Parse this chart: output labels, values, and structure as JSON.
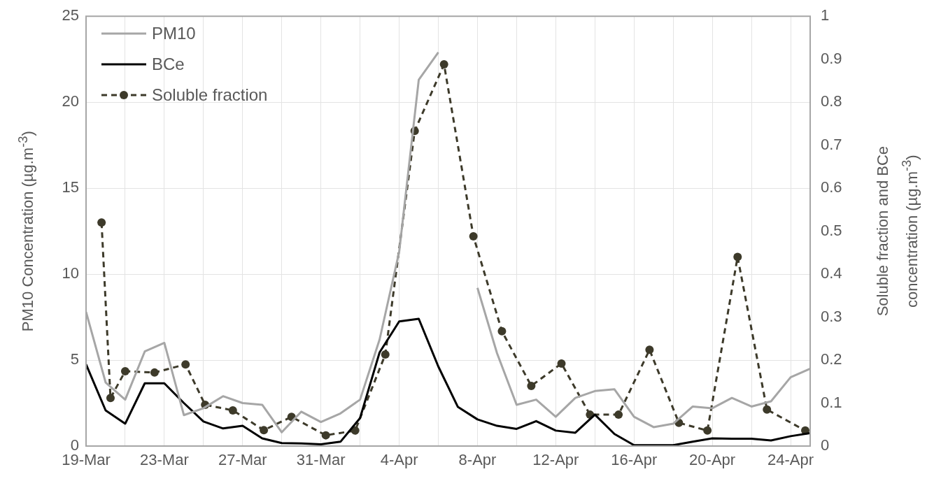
{
  "chart_data": {
    "type": "line",
    "ylabel": "PM10 Concentration (µg.m$^{-3}$)",
    "y2label": "Soluble fraction and BCe concentration (µg.m$^{-3}$)",
    "x": [
      "--03-19",
      "--03-20",
      "--03-21",
      "--03-22",
      "--03-23",
      "--03-24",
      "--03-25",
      "--03-26",
      "--03-27",
      "--03-28",
      "--03-29",
      "--03-30",
      "--03-31",
      "--04-01",
      "--04-02",
      "--04-03",
      "--04-04",
      "--04-05",
      "--04-06",
      "--04-07",
      "--04-08",
      "--04-09",
      "--04-10",
      "--04-11",
      "--04-12",
      "--04-13",
      "--04-14",
      "--04-15",
      "--04-16",
      "--04-17",
      "--04-18",
      "--04-19",
      "--04-20",
      "--04-21",
      "--04-22",
      "--04-23",
      "--04-24",
      "--04-25"
    ],
    "xlim": [
      "--03-19",
      "--04-25"
    ],
    "xticks": [
      {
        "value": "--03-19",
        "label": "19-Mar"
      },
      {
        "value": "--03-21",
        "label": null
      },
      {
        "value": "--03-23",
        "label": "23-Mar"
      },
      {
        "value": "--03-25",
        "label": null
      },
      {
        "value": "--03-27",
        "label": "27-Mar"
      },
      {
        "value": "--03-29",
        "label": null
      },
      {
        "value": "--03-31",
        "label": "31-Mar"
      },
      {
        "value": "--04-02",
        "label": null
      },
      {
        "value": "--04-04",
        "label": "4-Apr"
      },
      {
        "value": "--04-06",
        "label": null
      },
      {
        "value": "--04-08",
        "label": "8-Apr"
      },
      {
        "value": "--04-10",
        "label": null
      },
      {
        "value": "--04-12",
        "label": "12-Apr"
      },
      {
        "value": "--04-14",
        "label": null
      },
      {
        "value": "--04-16",
        "label": "16-Apr"
      },
      {
        "value": "--04-18",
        "label": null
      },
      {
        "value": "--04-20",
        "label": "20-Apr"
      },
      {
        "value": "--04-22",
        "label": null
      },
      {
        "value": "--04-24",
        "label": "24-Apr"
      }
    ],
    "ylim": [
      0,
      25
    ],
    "yticks": [
      0,
      5,
      10,
      15,
      20,
      25
    ],
    "y2lim": [
      0,
      1
    ],
    "y2ticks": [
      0,
      0.1,
      0.2,
      0.3,
      0.4,
      0.5,
      0.6,
      0.7,
      0.8,
      0.9,
      1
    ],
    "grid": true,
    "legend": "top left",
    "series": [
      {
        "name": "PM10",
        "color": "#a6a6a6",
        "values": [
          7.8,
          3.7,
          2.7,
          5.5,
          6.0,
          1.8,
          2.2,
          2.9,
          2.5,
          2.4,
          0.8,
          2.0,
          1.4,
          1.9,
          2.7,
          6.2,
          11.3,
          21.3,
          22.9,
          null,
          9.2,
          5.4,
          2.4,
          2.7,
          1.7,
          2.8,
          3.2,
          3.3,
          1.7,
          1.1,
          1.3,
          2.3,
          2.2,
          2.8,
          2.3,
          2.6,
          4.0,
          4.5
        ]
      },
      {
        "name": "BCe",
        "color": "#000000",
        "axis": "y2",
        "values": [
          0.19,
          0.083,
          0.052,
          0.146,
          0.146,
          0.1,
          0.057,
          0.041,
          0.047,
          0.018,
          0.007,
          0.006,
          0.004,
          0.01,
          0.065,
          0.218,
          0.29,
          0.296,
          0.185,
          0.091,
          0.062,
          0.047,
          0.04,
          0.058,
          0.036,
          0.031,
          0.073,
          0.028,
          0.002,
          0.002,
          0.002,
          0.01,
          0.018,
          0.017,
          0.017,
          0.013,
          0.023,
          0.03
        ]
      },
      {
        "name": "Soluble fraction",
        "color": "#3d3a2a",
        "axis": "y2",
        "marker": "circle",
        "line_style": "dashed",
        "x": [
          "--03-19T19:00",
          "--03-20T06:00",
          "--03-21T00:00",
          "--03-22T12:00",
          "--03-24T02:00",
          "--03-25T02:00",
          "--03-26T12:00",
          "--03-28T02:00",
          "--03-29T12:00",
          "--03-31T06:00",
          "--04-01T18:00",
          "--04-03T07:00",
          "--04-04T19:00",
          "--04-06T07:00",
          "--04-07T19:00",
          "--04-09T06:00",
          "--04-10T18:00",
          "--04-12T07:00",
          "--04-13T18:00",
          "--04-15T05:00",
          "--04-16T19:00",
          "--04-18T07:00",
          "--04-19T18:00",
          "--04-21T07:00",
          "--04-22T19:00",
          "--04-24T18:00"
        ],
        "values": [
          0.52,
          0.112,
          0.174,
          0.171,
          0.19,
          0.096,
          0.083,
          0.037,
          0.068,
          0.025,
          0.036,
          0.213,
          0.733,
          0.888,
          0.488,
          0.267,
          0.14,
          0.192,
          0.073,
          0.073,
          0.224,
          0.054,
          0.036,
          0.44,
          0.085,
          0.036
        ]
      }
    ]
  }
}
